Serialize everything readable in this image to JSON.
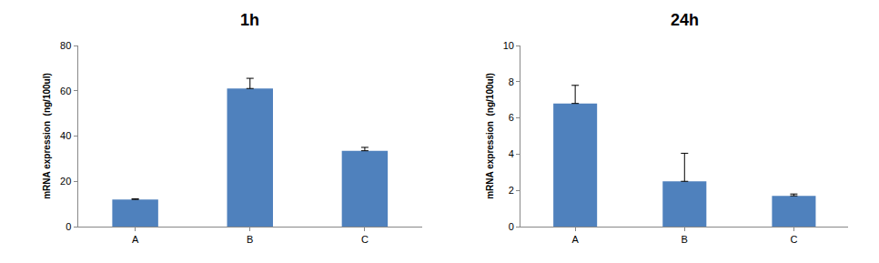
{
  "chart_data": [
    {
      "type": "bar",
      "title": "1h",
      "y_label": "mRNA expression  (ng/100ul)",
      "categories": [
        "A",
        "B",
        "C"
      ],
      "values": [
        12,
        61,
        33.5
      ],
      "error": [
        0.3,
        4.5,
        1.5
      ],
      "color": "#4f81bd",
      "ylim": [
        0,
        80
      ],
      "yticks": [
        0,
        20,
        40,
        60,
        80
      ],
      "grid": false
    },
    {
      "type": "bar",
      "title": "24h",
      "y_label": "mRNA expression  (ng/100ul)",
      "categories": [
        "A",
        "B",
        "C"
      ],
      "values": [
        6.8,
        2.5,
        1.7
      ],
      "error": [
        1.0,
        1.55,
        0.1
      ],
      "color": "#4f81bd",
      "ylim": [
        0,
        10
      ],
      "yticks": [
        0,
        2,
        4,
        6,
        8,
        10
      ],
      "grid": false
    }
  ]
}
